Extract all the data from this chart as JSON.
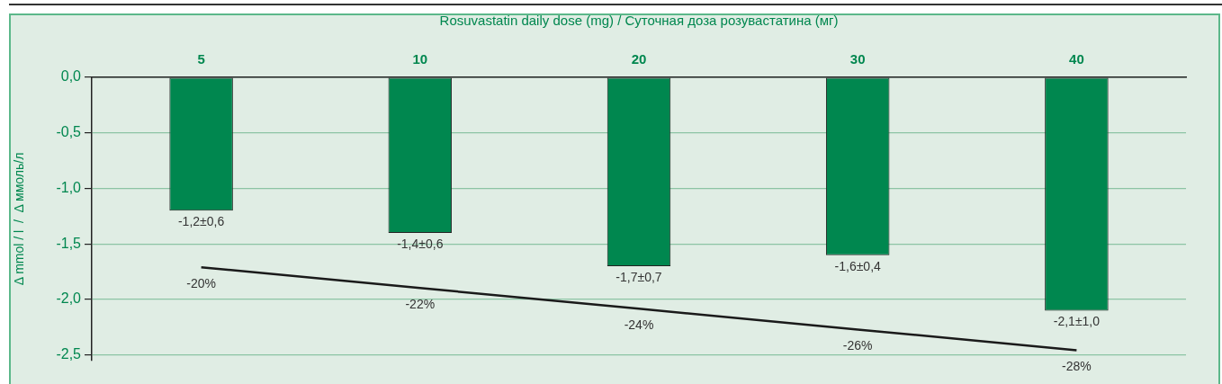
{
  "chart_data": {
    "type": "bar",
    "xlabel": "Rosuvastatin daily dose (mg) / Суточная доза розувастатина (мг)",
    "ylabel": "Δ mmol / l  /  Δ ммоль/л",
    "categories": [
      "5",
      "10",
      "20",
      "30",
      "40"
    ],
    "series": [
      {
        "color": "#00874f",
        "values": [
          -1.2,
          -1.4,
          -1.7,
          -1.6,
          -2.1
        ],
        "value_labels": [
          "-1,2±0,6",
          "-1,4±0,6",
          "-1,7±0,7",
          "-1,6±0,4",
          "-2,1±1,0"
        ]
      },
      {
        "type": "line",
        "color": "#1a1a1a",
        "axis": "y2",
        "values": [
          -20,
          -22,
          -24,
          -26,
          -28
        ],
        "value_labels": [
          "-20%",
          "-22%",
          "-24%",
          "-26%",
          "-28%"
        ]
      }
    ],
    "ylim": [
      -2.55,
      0
    ],
    "y2lim": [
      -29,
      -1.7
    ],
    "yticks": [
      {
        "value": 0,
        "label": "0,0"
      },
      {
        "value": -0.5,
        "label": "-0,5"
      },
      {
        "value": -1,
        "label": "-1,0"
      },
      {
        "value": -1.5,
        "label": "-1,5"
      },
      {
        "value": -2,
        "label": "-2,0"
      },
      {
        "value": -2.5,
        "label": "-2,5"
      }
    ],
    "grid": "y",
    "legend": false,
    "marker": "none"
  }
}
